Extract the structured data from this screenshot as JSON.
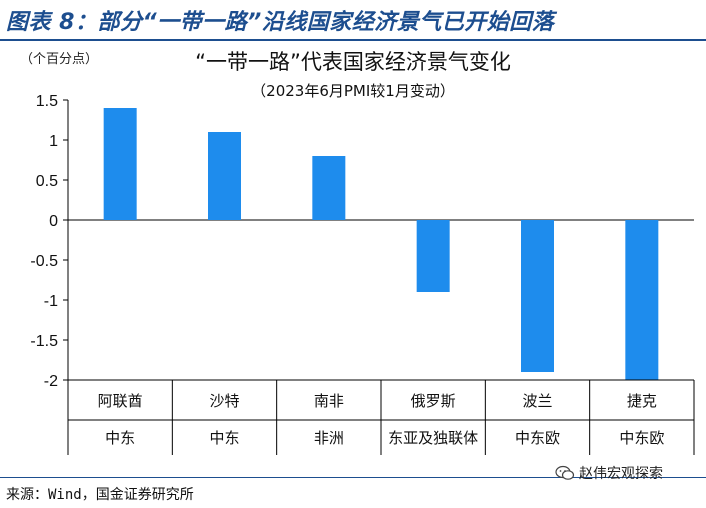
{
  "header": {
    "title": "图表 8：部分“一带一路”沿线国家经济景气已开始回落"
  },
  "unit_label": "（个百分点）",
  "chart_data": {
    "type": "bar",
    "title": "“一带一路”代表国家经济景气变化",
    "subtitle": "（2023年6月PMI较1月变动）",
    "ylabel": "个百分点",
    "ylim": [
      -2,
      1.5
    ],
    "yticks": [
      1.5,
      1,
      0.5,
      0,
      -0.5,
      -1,
      -1.5,
      -2
    ],
    "ytick_labels": [
      "1.5",
      "1",
      "0.5",
      "0",
      "-0.5",
      "-1",
      "-1.5",
      "-2"
    ],
    "categories": [
      "阿联酋",
      "沙特",
      "南非",
      "俄罗斯",
      "波兰",
      "捷克"
    ],
    "regions": [
      "中东",
      "中东",
      "非洲",
      "东亚及独联体",
      "中东欧",
      "中东欧"
    ],
    "values": [
      1.4,
      1.1,
      0.8,
      -0.9,
      -1.9,
      -2.0
    ],
    "bar_color": "#1e8ced",
    "grid": false
  },
  "source": "来源：Wind，国金证券研究所",
  "watermark": "赵伟宏观探索"
}
